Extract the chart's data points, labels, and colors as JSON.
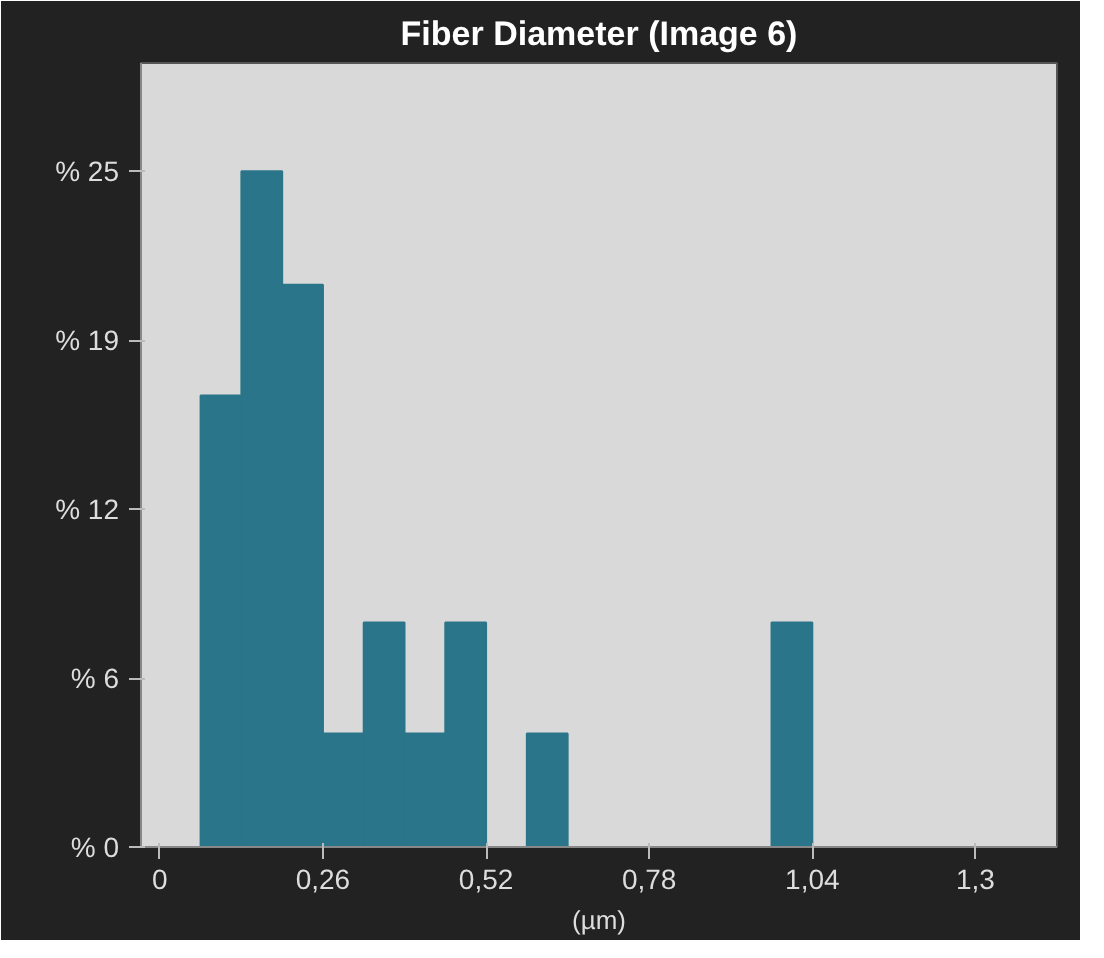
{
  "chart_data": {
    "type": "histogram",
    "title": "Fiber Diameter (Image 6)",
    "xlabel": "(µm)",
    "bins": [
      0.065,
      0.13,
      0.195,
      0.26,
      0.325,
      0.39,
      0.455,
      0.52,
      0.585,
      0.65,
      0.715,
      0.78,
      0.845,
      0.91,
      0.975,
      1.04
    ],
    "values": [
      16.7,
      25,
      20.8,
      4.2,
      8.3,
      4.2,
      8.3,
      0,
      4.2,
      0,
      0,
      0,
      0,
      0,
      8.3
    ],
    "color": "#2a7589",
    "xlim": [
      -0.03,
      1.43
    ],
    "ylim": [
      0,
      29
    ],
    "xticks": [
      0,
      {
        "value": 0.26,
        "label": "0,26"
      },
      {
        "value": 0.52,
        "label": "0,52"
      },
      {
        "value": 0.78,
        "label": "0,78"
      },
      {
        "value": 1.04,
        "label": "1,04"
      },
      {
        "value": 1.3,
        "label": "1,3"
      }
    ],
    "yticks": [
      {
        "value": 0,
        "label": "% 0"
      },
      {
        "value": 6.25,
        "label": "% 6"
      },
      {
        "value": 12.5,
        "label": "% 12"
      },
      {
        "value": 18.75,
        "label": "% 19"
      },
      {
        "value": 25,
        "label": "% 25"
      }
    ],
    "grid": false
  }
}
